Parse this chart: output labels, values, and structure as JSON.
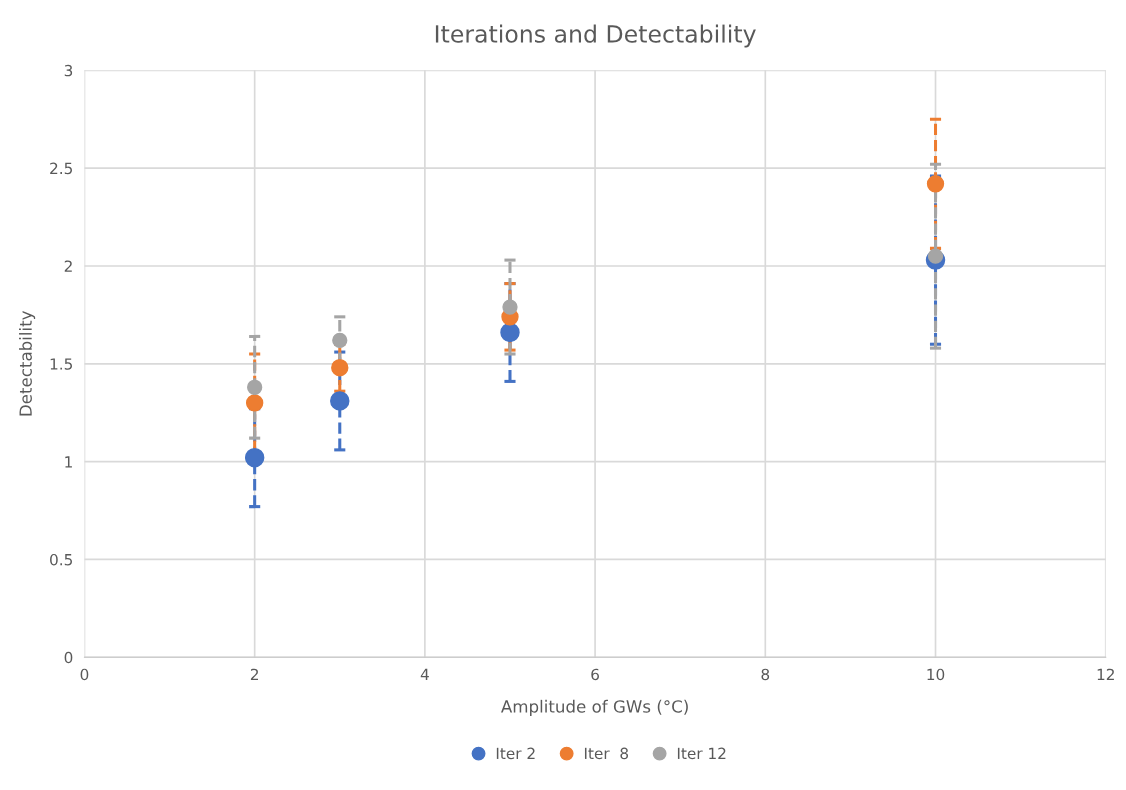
{
  "chart_data": {
    "type": "scatter",
    "title": "Iterations and Detectability",
    "xlabel": "Amplitude of GWs (°C)",
    "ylabel": "Detectability",
    "x": [
      2,
      3,
      5,
      10
    ],
    "series": [
      {
        "name": "Iter 2",
        "color": "#4472c4",
        "values": [
          1.02,
          1.31,
          1.66,
          2.03
        ],
        "errors": [
          0.25,
          0.25,
          0.25,
          0.43
        ]
      },
      {
        "name": "Iter  8",
        "color": "#ed7d31",
        "values": [
          1.3,
          1.48,
          1.74,
          2.42
        ],
        "errors": [
          0.25,
          0.12,
          0.17,
          0.33
        ]
      },
      {
        "name": "Iter 12",
        "color": "#a5a5a5",
        "values": [
          1.38,
          1.62,
          1.79,
          2.05
        ],
        "errors": [
          0.26,
          0.12,
          0.24,
          0.47
        ]
      }
    ],
    "xlim": [
      0,
      12
    ],
    "xticks": [
      0,
      2,
      4,
      6,
      8,
      10,
      12
    ],
    "ylim": [
      0,
      3
    ],
    "yticks": [
      0,
      0.5,
      1,
      1.5,
      2,
      2.5,
      3
    ],
    "grid": true,
    "legend": "bottom",
    "marker": "circle",
    "line_style": "dashed"
  }
}
